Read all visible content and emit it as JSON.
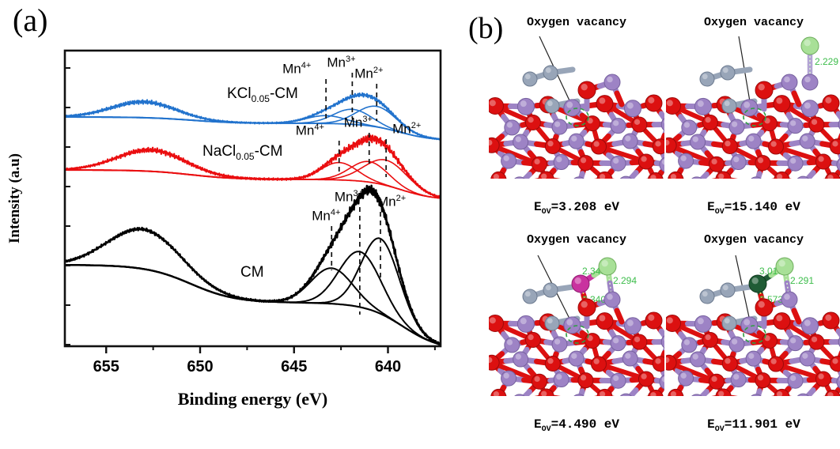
{
  "figure": {
    "panel_a_label": "(a)",
    "panel_b_label": "(b)"
  },
  "chart_data": {
    "type": "line",
    "title": "",
    "xlabel": "Binding energy (eV)",
    "ylabel": "Intensity (a.u)",
    "x_axis_reversed": true,
    "x_range_ev": [
      657.2,
      637.2
    ],
    "x_major_ticks": [
      655,
      650,
      645,
      640
    ],
    "x_minor_ticks": [
      652.5,
      647.5,
      642.5,
      637.5
    ],
    "grid": false,
    "series": [
      {
        "name": "KCl0.05-CM",
        "label_base": "KCl",
        "label_sub": "0.05",
        "label_suffix": "-CM",
        "color": "#2273cd",
        "noise_amplitude": 1.9,
        "satellite_peak": {
          "center_ev": 653.0,
          "sigma_ev": 1.7,
          "amplitude": 20
        },
        "background": {
          "base_y": 148,
          "step1_amp": 8,
          "step1_edge": 650.5,
          "step1_width": 1.2,
          "step2_amp": 22,
          "step2_edge": 639.4,
          "step2_width": 0.9
        },
        "peaks": [
          {
            "ion": "Mn",
            "charge": "4+",
            "center_ev": 643.3,
            "sigma_ev": 1.05,
            "amplitude": 10
          },
          {
            "ion": "Mn",
            "charge": "3+",
            "center_ev": 641.9,
            "sigma_ev": 1.0,
            "amplitude": 19
          },
          {
            "ion": "Mn",
            "charge": "2+",
            "center_ev": 640.6,
            "sigma_ev": 1.05,
            "amplitude": 26
          }
        ]
      },
      {
        "name": "NaCl0.05-CM",
        "label_base": "NaCl",
        "label_sub": "0.05",
        "label_suffix": "-CM",
        "color": "#ea0e10",
        "noise_amplitude": 2.3,
        "satellite_peak": {
          "center_ev": 652.6,
          "sigma_ev": 1.8,
          "amplitude": 27
        },
        "background": {
          "base_y": 215,
          "step1_amp": 12,
          "step1_edge": 650.5,
          "step1_width": 1.2,
          "step2_amp": 26,
          "step2_edge": 639.3,
          "step2_width": 0.9
        },
        "peaks": [
          {
            "ion": "Mn",
            "charge": "4+",
            "center_ev": 642.6,
            "sigma_ev": 0.95,
            "amplitude": 22
          },
          {
            "ion": "Mn",
            "charge": "3+",
            "center_ev": 641.0,
            "sigma_ev": 1.0,
            "amplitude": 26
          },
          {
            "ion": "Mn",
            "charge": "2+",
            "center_ev": 640.1,
            "sigma_ev": 1.15,
            "amplitude": 32
          }
        ]
      },
      {
        "name": "CM",
        "label_base": "CM",
        "label_sub": "",
        "label_suffix": "",
        "color": "#000000",
        "noise_amplitude": 2.9,
        "satellite_peak": {
          "center_ev": 653.0,
          "sigma_ev": 1.9,
          "amplitude": 50
        },
        "background": {
          "base_y": 335,
          "step1_amp": 48,
          "step1_edge": 650.5,
          "step1_width": 1.2,
          "step2_amp": 60,
          "step2_edge": 639.2,
          "step2_width": 1.0
        },
        "peaks": [
          {
            "ion": "Mn",
            "charge": "4+",
            "center_ev": 643.0,
            "sigma_ev": 1.1,
            "amplitude": 45
          },
          {
            "ion": "Mn",
            "charge": "3+",
            "center_ev": 641.5,
            "sigma_ev": 1.1,
            "amplitude": 70
          },
          {
            "ion": "Mn",
            "charge": "2+",
            "center_ev": 640.4,
            "sigma_ev": 1.0,
            "amplitude": 95
          }
        ]
      }
    ]
  },
  "panel_b": {
    "structures": [
      {
        "label": "Oxygen vacancy",
        "energy_symbol": "E",
        "energy_subscript": "OV",
        "energy_value": "3.208",
        "energy_unit": "eV",
        "bond_lengths": [],
        "adatoms": []
      },
      {
        "label": "Oxygen vacancy",
        "energy_symbol": "E",
        "energy_subscript": "OV",
        "energy_value": "15.140",
        "energy_unit": "eV",
        "bond_lengths": [
          "2.229"
        ],
        "adatoms": [
          "light-green"
        ]
      },
      {
        "label": "Oxygen vacancy",
        "energy_symbol": "E",
        "energy_subscript": "OV",
        "energy_value": "4.490",
        "energy_unit": "eV",
        "bond_lengths": [
          "2.348",
          "2.294",
          "2.340"
        ],
        "adatoms": [
          "magenta",
          "light-green"
        ]
      },
      {
        "label": "Oxygen vacancy",
        "energy_symbol": "E",
        "energy_subscript": "OV",
        "energy_value": "11.901",
        "energy_unit": "eV",
        "bond_lengths": [
          "3.013",
          "2.291",
          "2.573"
        ],
        "adatoms": [
          "dark-green",
          "light-green"
        ]
      }
    ],
    "atom_colors": {
      "red_atom": "#dc1010",
      "purple_atom": "#9d83c5",
      "gray_atom": "#98a5b8",
      "light_green_atom": "#a8e097",
      "magenta_atom": "#c9329f",
      "dark_green_atom": "#1f5c35",
      "bond_label_green": "#3dbd4b",
      "vacancy_circle_green": "#2f9e44"
    }
  }
}
